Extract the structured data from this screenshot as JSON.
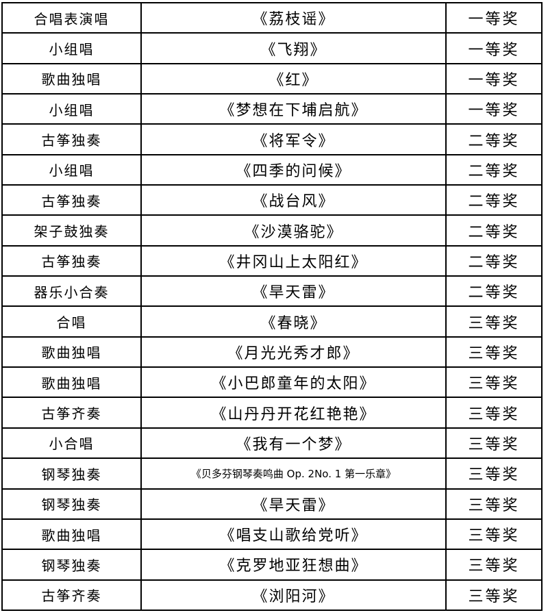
{
  "table": {
    "columns": [
      "category",
      "title",
      "award"
    ],
    "rows": [
      {
        "category": "合唱表演唱",
        "title": "《荔枝谣》",
        "award": "一等奖"
      },
      {
        "category": "小组唱",
        "title": "《飞翔》",
        "award": "一等奖"
      },
      {
        "category": "歌曲独唱",
        "title": "《红》",
        "award": "一等奖"
      },
      {
        "category": "小组唱",
        "title": "《梦想在下埔启航》",
        "award": "一等奖"
      },
      {
        "category": "古筝独奏",
        "title": "《将军令》",
        "award": "二等奖"
      },
      {
        "category": "小组唱",
        "title": "《四季的问候》",
        "award": "二等奖"
      },
      {
        "category": "古筝独奏",
        "title": "《战台风》",
        "award": "二等奖"
      },
      {
        "category": "架子鼓独奏",
        "title": "《沙漠骆驼》",
        "award": "二等奖"
      },
      {
        "category": "古筝独奏",
        "title": "《井冈山上太阳红》",
        "award": "二等奖"
      },
      {
        "category": "器乐小合奏",
        "title": "《旱天雷》",
        "award": "二等奖"
      },
      {
        "category": "合唱",
        "title": "《春晓》",
        "award": "三等奖"
      },
      {
        "category": "歌曲独唱",
        "title": "《月光光秀才郎》",
        "award": "三等奖"
      },
      {
        "category": "歌曲独唱",
        "title": "《小巴郎童年的太阳》",
        "award": "三等奖"
      },
      {
        "category": "古筝齐奏",
        "title": "《山丹丹开花红艳艳》",
        "award": "三等奖"
      },
      {
        "category": "小合唱",
        "title": "《我有一个梦》",
        "award": "三等奖"
      },
      {
        "category": "钢琴独奏",
        "title": "《贝多芬钢琴奏鸣曲 Op. 2No. 1 第一乐章》",
        "award": "三等奖"
      },
      {
        "category": "钢琴独奏",
        "title": "《旱天雷》",
        "award": "三等奖"
      },
      {
        "category": "歌曲独唱",
        "title": "《唱支山歌给党听》",
        "award": "三等奖"
      },
      {
        "category": "钢琴独奏",
        "title": "《克罗地亚狂想曲》",
        "award": "三等奖"
      },
      {
        "category": "古筝齐奏",
        "title": "《浏阳河》",
        "award": "三等奖"
      }
    ],
    "border_color": "#000000",
    "text_color": "#000000",
    "background_color": "#ffffff"
  }
}
